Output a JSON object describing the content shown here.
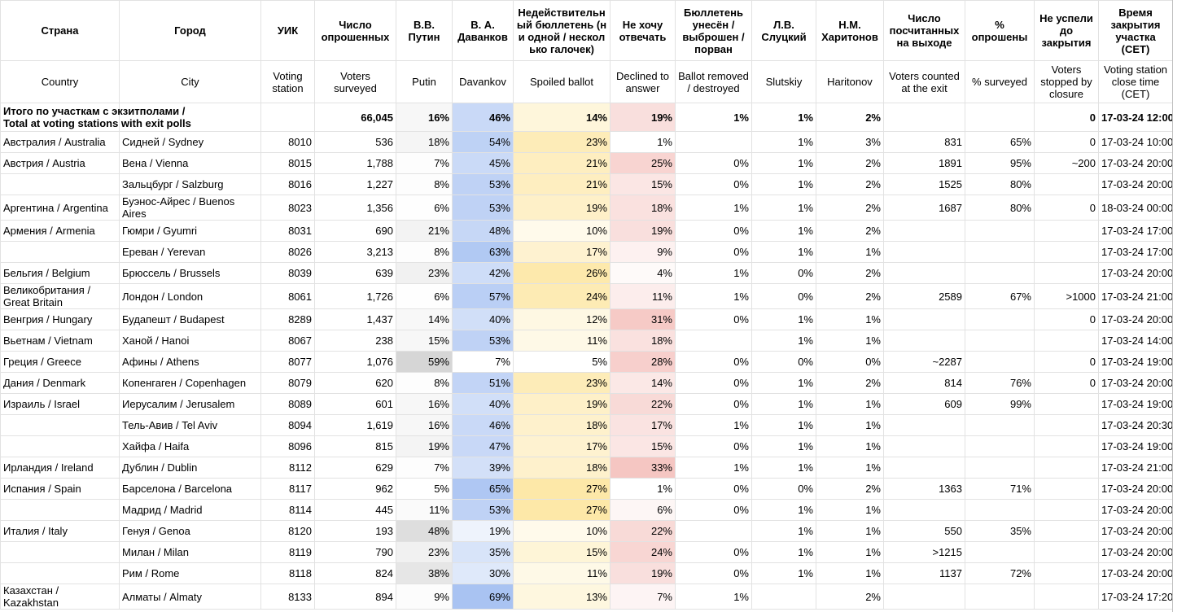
{
  "table": {
    "header_ru": [
      "Страна",
      "Город",
      "УИК",
      "Число опрошенных",
      "В.В. Путин",
      "В. А. Даванков",
      "Недействительный бюллетень (ни одной / несколько галочек)",
      "Не хочу отвечать",
      "Бюллетень унесён / выброшен / порван",
      "Л.В. Слуцкий",
      "Н.М. Харитонов",
      "Число посчитанных на выходе",
      "% опрошены",
      "Не успели до закрытия",
      "Время закрытия участка (CET)"
    ],
    "header_en": [
      "Country",
      "City",
      "Voting station",
      "Voters surveyed",
      "Putin",
      "Davankov",
      "Spoiled ballot",
      "Declined to answer",
      "Ballot removed / destroyed",
      "Slutskiy",
      "Haritonov",
      "Voters counted at the exit",
      "% surveyed",
      "Voters stopped by closure",
      "Voting station close time (CET)"
    ],
    "rows": [
      [
        "Итого по участкам с экзитполами /\nTotal at voting stations with exit polls",
        null,
        null,
        "66,045",
        "16%",
        "46%",
        "14%",
        "19%",
        "1%",
        "1%",
        "2%",
        null,
        null,
        "0",
        "17-03-24 12:00"
      ],
      [
        "Австралия / Australia",
        "Сидней / Sydney",
        "8010",
        "536",
        "18%",
        "54%",
        "23%",
        "1%",
        null,
        "1%",
        "3%",
        "831",
        "65%",
        "0",
        "17-03-24 10:00"
      ],
      [
        "Австрия / Austria",
        "Вена / Vienna",
        "8015",
        "1,788",
        "7%",
        "45%",
        "21%",
        "25%",
        "0%",
        "1%",
        "2%",
        "1891",
        "95%",
        "~200",
        "17-03-24 20:00"
      ],
      [
        null,
        "Зальцбург / Salzburg",
        "8016",
        "1,227",
        "8%",
        "53%",
        "21%",
        "15%",
        "0%",
        "1%",
        "2%",
        "1525",
        "80%",
        null,
        "17-03-24 20:00"
      ],
      [
        "Аргентина / Argentina",
        "Буэнос-Айрес / Buenos Aires",
        "8023",
        "1,356",
        "6%",
        "53%",
        "19%",
        "18%",
        "1%",
        "1%",
        "2%",
        "1687",
        "80%",
        "0",
        "18-03-24 00:00"
      ],
      [
        "Армения / Armenia",
        "Гюмри / Gyumri",
        "8031",
        "690",
        "21%",
        "48%",
        "10%",
        "19%",
        "0%",
        "1%",
        "2%",
        null,
        null,
        null,
        "17-03-24 17:00"
      ],
      [
        null,
        "Ереван / Yerevan",
        "8026",
        "3,213",
        "8%",
        "63%",
        "17%",
        "9%",
        "0%",
        "1%",
        "1%",
        null,
        null,
        null,
        "17-03-24 17:00"
      ],
      [
        "Бельгия / Belgium",
        "Брюссель / Brussels",
        "8039",
        "639",
        "23%",
        "42%",
        "26%",
        "4%",
        "1%",
        "0%",
        "2%",
        null,
        null,
        null,
        "17-03-24 20:00"
      ],
      [
        "Великобритания / Great Britain",
        "Лондон / London",
        "8061",
        "1,726",
        "6%",
        "57%",
        "24%",
        "11%",
        "1%",
        "0%",
        "2%",
        "2589",
        "67%",
        ">1000",
        "17-03-24 21:00"
      ],
      [
        "Венгрия / Hungary",
        "Будапешт / Budapest",
        "8289",
        "1,437",
        "14%",
        "40%",
        "12%",
        "31%",
        "0%",
        "1%",
        "1%",
        null,
        null,
        "0",
        "17-03-24 20:00"
      ],
      [
        "Вьетнам / Vietnam",
        "Ханой / Hanoi",
        "8067",
        "238",
        "15%",
        "53%",
        "11%",
        "18%",
        null,
        "1%",
        "1%",
        null,
        null,
        null,
        "17-03-24 14:00"
      ],
      [
        "Греция / Greece",
        "Афины / Athens",
        "8077",
        "1,076",
        "59%",
        "7%",
        "5%",
        "28%",
        "0%",
        "0%",
        "0%",
        "~2287",
        null,
        "0",
        "17-03-24 19:00"
      ],
      [
        "Дания / Denmark",
        "Копенгаген / Copenhagen",
        "8079",
        "620",
        "8%",
        "51%",
        "23%",
        "14%",
        "0%",
        "1%",
        "2%",
        "814",
        "76%",
        "0",
        "17-03-24 20:00"
      ],
      [
        "Израиль / Israel",
        "Иерусалим / Jerusalem",
        "8089",
        "601",
        "16%",
        "40%",
        "19%",
        "22%",
        "0%",
        "1%",
        "1%",
        "609",
        "99%",
        null,
        "17-03-24 19:00"
      ],
      [
        null,
        "Тель-Авив / Tel Aviv",
        "8094",
        "1,619",
        "16%",
        "46%",
        "18%",
        "17%",
        "1%",
        "1%",
        "1%",
        null,
        null,
        null,
        "17-03-24 20:30"
      ],
      [
        null,
        "Хайфа / Haifa",
        "8096",
        "815",
        "19%",
        "47%",
        "17%",
        "15%",
        "0%",
        "1%",
        "1%",
        null,
        null,
        null,
        "17-03-24 19:00"
      ],
      [
        "Ирландия / Ireland",
        "Дублин / Dublin",
        "8112",
        "629",
        "7%",
        "39%",
        "18%",
        "33%",
        "1%",
        "1%",
        "1%",
        null,
        null,
        null,
        "17-03-24 21:00"
      ],
      [
        "Испания / Spain",
        "Барселона / Barcelona",
        "8117",
        "962",
        "5%",
        "65%",
        "27%",
        "1%",
        "0%",
        "0%",
        "2%",
        "1363",
        "71%",
        null,
        "17-03-24 20:00"
      ],
      [
        null,
        "Мадрид / Madrid",
        "8114",
        "445",
        "11%",
        "53%",
        "27%",
        "6%",
        "0%",
        "1%",
        "1%",
        null,
        null,
        null,
        "17-03-24 20:00"
      ],
      [
        "Италия / Italy",
        "Генуя / Genoa",
        "8120",
        "193",
        "48%",
        "19%",
        "10%",
        "22%",
        null,
        "1%",
        "1%",
        "550",
        "35%",
        null,
        "17-03-24 20:00"
      ],
      [
        null,
        "Милан / Milan",
        "8119",
        "790",
        "23%",
        "35%",
        "15%",
        "24%",
        "0%",
        "1%",
        "1%",
        ">1215",
        null,
        null,
        "17-03-24 20:00"
      ],
      [
        null,
        "Рим / Rome",
        "8118",
        "824",
        "38%",
        "30%",
        "11%",
        "19%",
        "0%",
        "1%",
        "1%",
        "1137",
        "72%",
        null,
        "17-03-24 20:00"
      ],
      [
        "Казахстан / Kazakhstan",
        "Алматы / Almaty",
        "8133",
        "894",
        "9%",
        "69%",
        "13%",
        "7%",
        "1%",
        null,
        "2%",
        null,
        null,
        null,
        "17-03-24 17:20"
      ]
    ],
    "conditional_colors": {
      "4": "#d6d6d6",
      "5": "#a9c3f2",
      "6": "#fde8a8",
      "7": "#f5c6c2"
    }
  }
}
